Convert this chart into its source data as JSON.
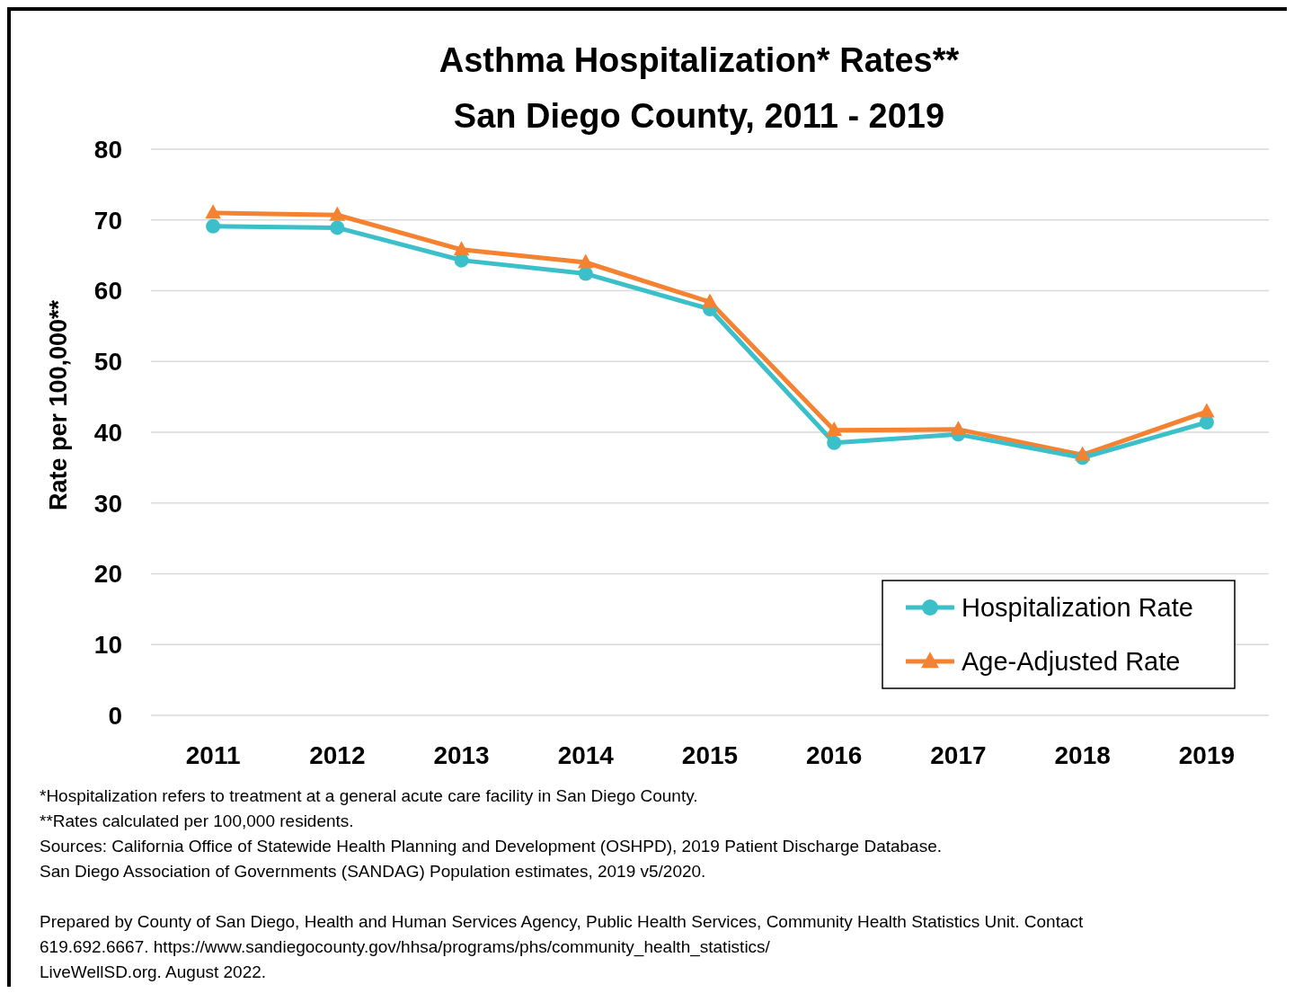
{
  "chart_data": {
    "type": "line",
    "title": "Asthma Hospitalization* Rates**",
    "subtitle": "San Diego County, 2011 - 2019",
    "ylabel": "Rate per 100,000**",
    "categories": [
      "2011",
      "2012",
      "2013",
      "2014",
      "2015",
      "2016",
      "2017",
      "2018",
      "2019"
    ],
    "series": [
      {
        "name": "Hospitalization Rate",
        "color": "#3bbfc9",
        "marker": "circle",
        "values": [
          69.1,
          68.9,
          64.3,
          62.4,
          57.4,
          38.5,
          39.7,
          36.4,
          41.4
        ]
      },
      {
        "name": "Age-Adjusted Rate",
        "color": "#f58231",
        "marker": "triangle",
        "values": [
          71.0,
          70.7,
          65.8,
          64.0,
          58.4,
          40.3,
          40.4,
          36.8,
          42.9
        ]
      }
    ],
    "ylim": [
      0,
      80
    ],
    "yticks": [
      0,
      10,
      20,
      30,
      40,
      50,
      60,
      70,
      80
    ],
    "grid": "y",
    "legend": "bottom right",
    "annotations": [
      "*Hospitalization refers to treatment at a general acute care facility in San Diego County.",
      "**Rates calculated per 100,000 residents.",
      "Sources: California Office of Statewide Health Planning and Development (OSHPD), 2019 Patient Discharge Database.",
      "San Diego Association of Governments (SANDAG) Population estimates, 2019 v5/2020.",
      "Prepared by County of San Diego, Health and Human Services Agency, Public Health Services, Community Health Statistics Unit. Contact",
      "619.692.6667. https://www.sandiegocounty.gov/hhsa/programs/phs/community_health_statistics/",
      "LiveWellSD.org. August 2022."
    ]
  }
}
